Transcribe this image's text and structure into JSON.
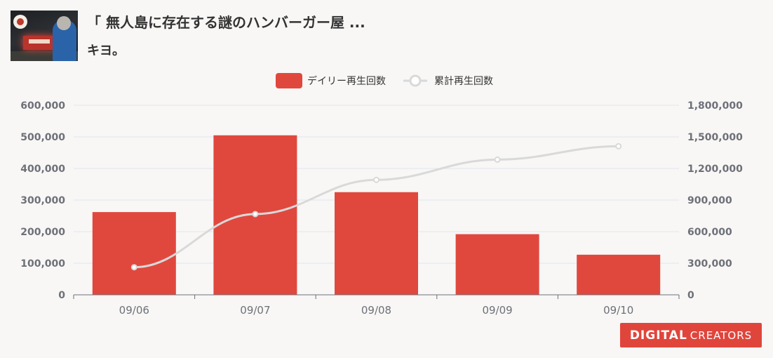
{
  "header": {
    "title": "「 無人島に存在する謎のハンバーガー屋 ...",
    "channel": "キヨ。"
  },
  "logo": {
    "primary": "DIGITAL",
    "secondary": "CREATORS"
  },
  "colors": {
    "bar": "#e0483e",
    "line": "#d9d9d9",
    "grid": "#e0e6f1",
    "axis": "#6e7079"
  },
  "chart_data": {
    "type": "bar",
    "categories": [
      "09/06",
      "09/07",
      "09/08",
      "09/09",
      "09/10"
    ],
    "series": [
      {
        "name": "デイリー再生回数",
        "type": "bar",
        "axis": "left",
        "values": [
          262000,
          505000,
          325000,
          192000,
          127000
        ]
      },
      {
        "name": "累計再生回数",
        "type": "line",
        "axis": "right",
        "values": [
          262000,
          767000,
          1092000,
          1284000,
          1411000
        ]
      }
    ],
    "y_left": {
      "min": 0,
      "max": 600000,
      "ticks": [
        "600,000",
        "500,000",
        "400,000",
        "300,000",
        "200,000",
        "100,000",
        "0"
      ]
    },
    "y_right": {
      "min": 0,
      "max": 1800000,
      "ticks": [
        "1,800,000",
        "1,500,000",
        "1,200,000",
        "900,000",
        "600,000",
        "300,000",
        "0"
      ]
    },
    "legend_position": "top-center",
    "grid": true
  }
}
